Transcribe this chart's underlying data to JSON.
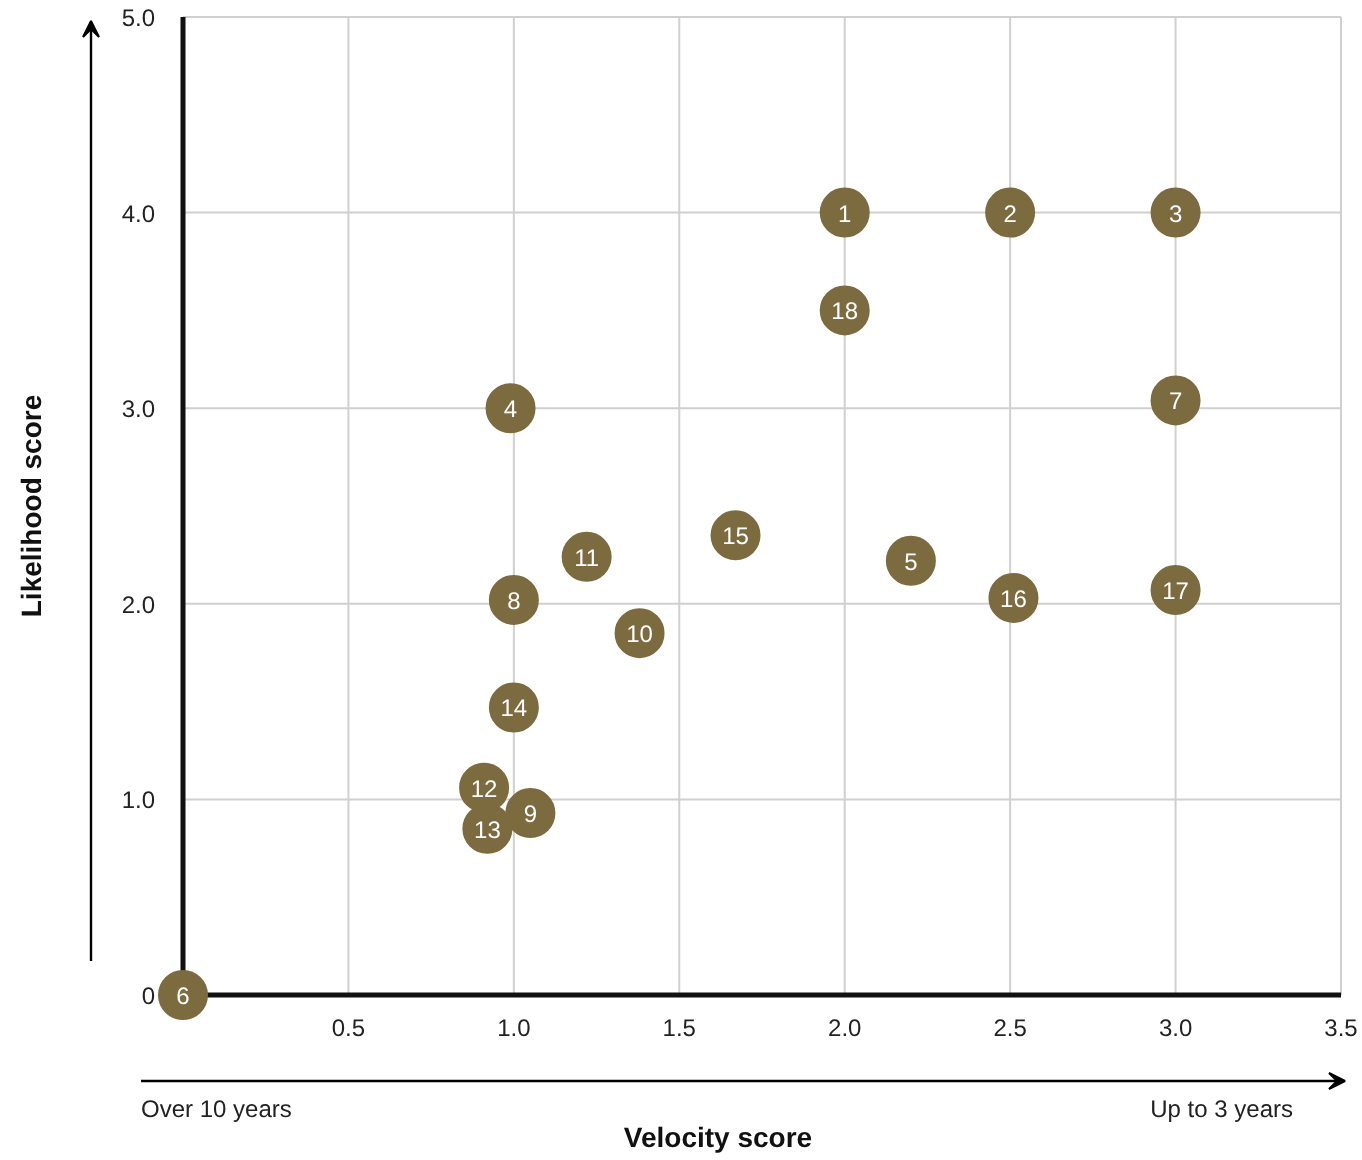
{
  "chart_data": {
    "type": "scatter",
    "xlabel": "Velocity score",
    "ylabel": "Likelihood score",
    "x": [
      2.0,
      2.5,
      3.0,
      0.99,
      2.2,
      0,
      3.0,
      1.0,
      1.05,
      1.38,
      1.22,
      0.91,
      0.92,
      1.0,
      1.67,
      2.51,
      3.0,
      2.0
    ],
    "series": [
      {
        "color": "#7d6b40",
        "values": [
          4.0,
          4.0,
          4.0,
          3.0,
          2.22,
          0,
          3.04,
          2.02,
          0.93,
          1.85,
          2.24,
          1.06,
          0.85,
          1.47,
          2.35,
          2.03,
          2.07,
          3.5
        ]
      }
    ],
    "xlim": [
      0,
      3.5
    ],
    "ylim": [
      0,
      5
    ],
    "xticks": [
      {
        "value": 0.5,
        "label": "0.5"
      },
      {
        "value": 1,
        "label": "1.0"
      },
      {
        "value": 1.5,
        "label": "1.5"
      },
      {
        "value": 2,
        "label": "2.0"
      },
      {
        "value": 2.5,
        "label": "2.5"
      },
      {
        "value": 3,
        "label": "3.0"
      },
      {
        "value": 3.5,
        "label": "3.5"
      }
    ],
    "yticks": [
      0,
      {
        "value": 1,
        "label": "1.0"
      },
      {
        "value": 2,
        "label": "2.0"
      },
      {
        "value": 3,
        "label": "3.0"
      },
      {
        "value": 4,
        "label": "4.0"
      },
      {
        "value": 5,
        "label": "5.0"
      }
    ],
    "grid": true,
    "marker": "circle",
    "annotations": [
      {
        "text": "1",
        "x": 2.0,
        "y": 4.0
      },
      {
        "text": "2",
        "x": 2.5,
        "y": 4.0
      },
      {
        "text": "3",
        "x": 3.0,
        "y": 4.0
      },
      {
        "text": "4",
        "x": 0.99,
        "y": 3.0
      },
      {
        "text": "5",
        "x": 2.2,
        "y": 2.22
      },
      {
        "text": "6",
        "x": 0,
        "y": 0
      },
      {
        "text": "7",
        "x": 3.0,
        "y": 3.04
      },
      {
        "text": "8",
        "x": 1.0,
        "y": 2.02
      },
      {
        "text": "9",
        "x": 1.05,
        "y": 0.93
      },
      {
        "text": "10",
        "x": 1.38,
        "y": 1.85
      },
      {
        "text": "11",
        "x": 1.22,
        "y": 2.24
      },
      {
        "text": "12",
        "x": 0.91,
        "y": 1.06
      },
      {
        "text": "13",
        "x": 0.92,
        "y": 0.85
      },
      {
        "text": "14",
        "x": 1.0,
        "y": 1.47
      },
      {
        "text": "15",
        "x": 1.67,
        "y": 2.35
      },
      {
        "text": "16",
        "x": 2.51,
        "y": 2.03
      },
      {
        "text": "17",
        "x": 3.0,
        "y": 2.07
      },
      {
        "text": "18",
        "x": 2.0,
        "y": 3.5
      },
      "Over 10 years",
      "Up to 3 years"
    ]
  }
}
